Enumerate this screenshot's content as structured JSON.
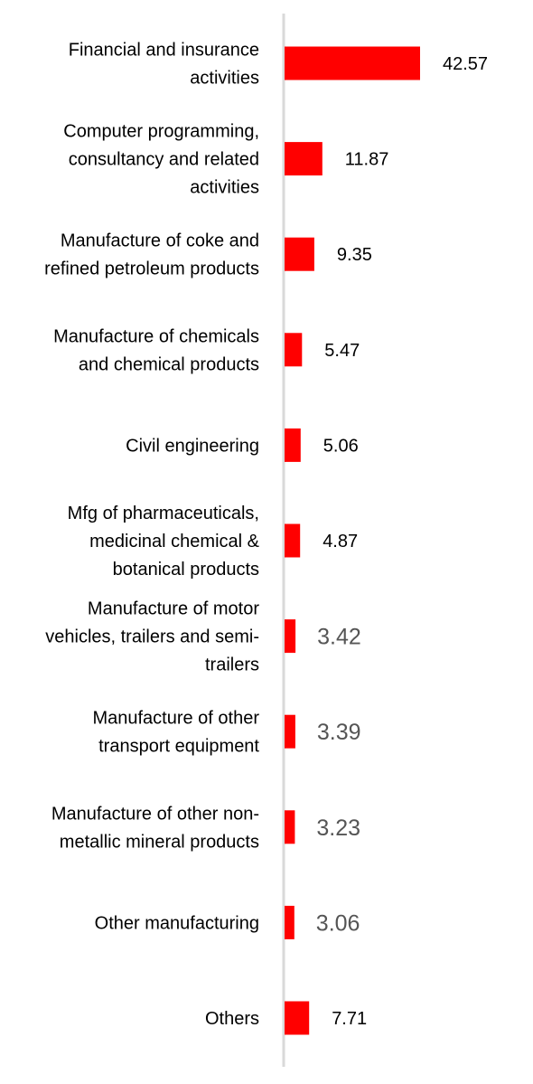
{
  "chart_data": {
    "type": "bar",
    "orientation": "horizontal",
    "categories": [
      [
        "Financial and insurance",
        "activities"
      ],
      [
        "Computer programming,",
        "consultancy and related",
        "activities"
      ],
      [
        "Manufacture of coke and",
        "refined petroleum products"
      ],
      [
        "Manufacture of chemicals",
        "and chemical products"
      ],
      [
        "Civil engineering"
      ],
      [
        "Mfg of pharmaceuticals,",
        "medicinal chemical &",
        "botanical products"
      ],
      [
        "Manufacture of motor",
        "vehicles, trailers and semi-",
        "trailers"
      ],
      [
        "Manufacture of other",
        "transport equipment"
      ],
      [
        "Manufacture of other non-",
        "metallic mineral products"
      ],
      [
        "Other manufacturing"
      ],
      [
        "Others"
      ]
    ],
    "values": [
      42.57,
      11.87,
      9.35,
      5.47,
      5.06,
      4.87,
      3.42,
      3.39,
      3.23,
      3.06,
      7.71
    ],
    "value_labels": [
      "42.57",
      "11.87",
      "9.35",
      "5.47",
      "5.06",
      "4.87",
      "3.42",
      "3.39",
      "3.23",
      "3.06",
      "7.71"
    ],
    "muted_labels": [
      false,
      false,
      false,
      false,
      false,
      false,
      true,
      true,
      true,
      true,
      false
    ],
    "title": "",
    "xlabel": "",
    "ylabel": "",
    "xlim": [
      0,
      50
    ],
    "grid": false,
    "legend": "none",
    "colors": {
      "bar": "#ff0000",
      "axis": "#d9d9d9",
      "label": "#000000",
      "muted_label": "#555555"
    }
  }
}
